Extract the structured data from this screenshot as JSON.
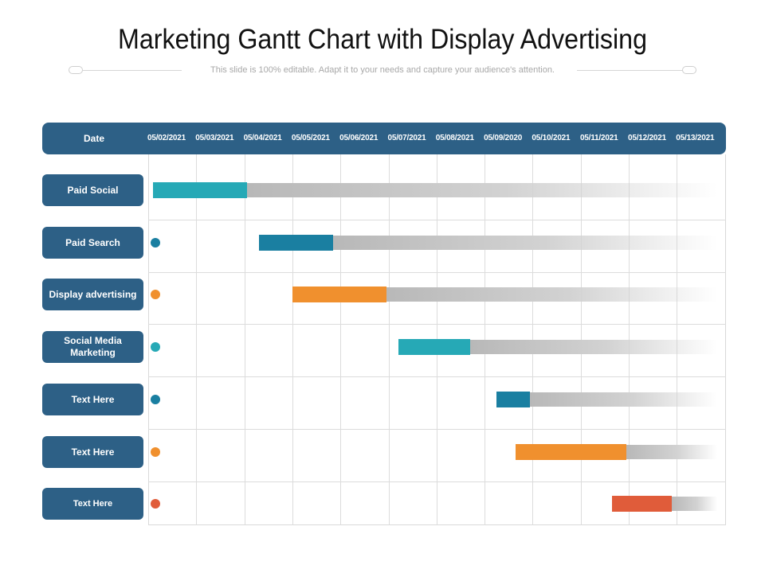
{
  "title": "Marketing Gantt Chart with Display Advertising",
  "subtitle": "This slide is 100% editable. Adapt it to your needs and capture your audience's attention.",
  "colors": {
    "header": "#2d6086",
    "teal": "#26a9b6",
    "blue": "#1a7fa1",
    "orange": "#f0902e",
    "red": "#e05c3a"
  },
  "chart_data": {
    "type": "gantt",
    "header_label": "Date",
    "dates": [
      "05/02/2021",
      "05/03/2021",
      "05/04/2021",
      "05/05/2021",
      "05/06/2021",
      "05/07/2021",
      "05/08/2021",
      "05/09/2020",
      "05/10/2021",
      "05/11/2021",
      "05/12/2021",
      "05/13/2021"
    ],
    "tasks": [
      {
        "label": "Paid Social",
        "dot_color": "",
        "bar_color": "#26a9b6",
        "start": 0.1,
        "end": 2.05
      },
      {
        "label": "Paid Search",
        "dot_color": "#1a7fa1",
        "bar_color": "#1a7fa1",
        "start": 2.3,
        "end": 3.85
      },
      {
        "label": "Display advertising",
        "dot_color": "#f0902e",
        "bar_color": "#f0902e",
        "start": 3.0,
        "end": 4.95
      },
      {
        "label": "Social Media Marketing",
        "dot_color": "#26a9b6",
        "bar_color": "#26a9b6",
        "start": 5.2,
        "end": 6.7
      },
      {
        "label": "Text Here",
        "dot_color": "#1a7fa1",
        "bar_color": "#1a7fa1",
        "start": 7.25,
        "end": 7.95
      },
      {
        "label": "Text Here",
        "dot_color": "#f0902e",
        "bar_color": "#f0902e",
        "start": 7.65,
        "end": 9.95
      },
      {
        "label": "Text Here",
        "dot_color": "#e05c3a",
        "bar_color": "#e05c3a",
        "start": 9.65,
        "end": 10.9
      }
    ]
  }
}
